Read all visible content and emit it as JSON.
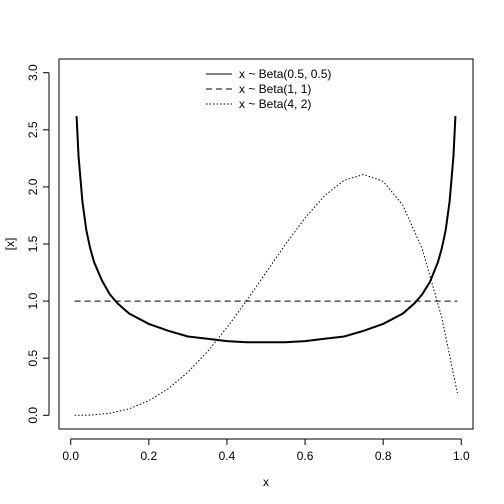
{
  "chart_data": {
    "type": "line",
    "title": "",
    "xlabel": "x",
    "ylabel": "[x]",
    "xlim": [
      -0.03,
      1.03
    ],
    "ylim": [
      -0.12,
      3.12
    ],
    "xticks": [
      0.0,
      0.2,
      0.4,
      0.6,
      0.8,
      1.0
    ],
    "xtick_labels": [
      "0.0",
      "0.2",
      "0.4",
      "0.6",
      "0.8",
      "1.0"
    ],
    "yticks": [
      0.0,
      0.5,
      1.0,
      1.5,
      2.0,
      2.5,
      3.0
    ],
    "ytick_labels": [
      "0.0",
      "0.5",
      "1.0",
      "1.5",
      "2.0",
      "2.5",
      "3.0"
    ],
    "grid": false,
    "legend_position": "top-center",
    "series": [
      {
        "name": "x ~ Beta(0.5, 0.5)",
        "style": "solid",
        "width": 2,
        "x": [
          0.015,
          0.02,
          0.03,
          0.04,
          0.05,
          0.06,
          0.08,
          0.1,
          0.12,
          0.15,
          0.2,
          0.25,
          0.3,
          0.35,
          0.4,
          0.45,
          0.5,
          0.55,
          0.6,
          0.65,
          0.7,
          0.75,
          0.8,
          0.85,
          0.88,
          0.9,
          0.92,
          0.94,
          0.95,
          0.96,
          0.97,
          0.98,
          0.985
        ],
        "y": [
          2.62,
          2.27,
          1.87,
          1.62,
          1.46,
          1.34,
          1.18,
          1.06,
          0.98,
          0.89,
          0.8,
          0.74,
          0.69,
          0.67,
          0.65,
          0.64,
          0.64,
          0.64,
          0.65,
          0.67,
          0.69,
          0.74,
          0.8,
          0.89,
          0.98,
          1.06,
          1.17,
          1.34,
          1.46,
          1.62,
          1.87,
          2.27,
          2.62
        ]
      },
      {
        "name": "x ~ Beta(1, 1)",
        "style": "dashed",
        "width": 1,
        "x": [
          0.01,
          0.99
        ],
        "y": [
          1.0,
          1.0
        ]
      },
      {
        "name": "x ~ Beta(4, 2)",
        "style": "dotted",
        "width": 1,
        "x": [
          0.01,
          0.05,
          0.1,
          0.15,
          0.2,
          0.25,
          0.3,
          0.35,
          0.4,
          0.45,
          0.5,
          0.55,
          0.6,
          0.65,
          0.7,
          0.75,
          0.8,
          0.85,
          0.9,
          0.95,
          0.99
        ],
        "y": [
          0.0,
          0.002,
          0.018,
          0.057,
          0.128,
          0.234,
          0.378,
          0.557,
          0.768,
          1.002,
          1.25,
          1.498,
          1.728,
          1.922,
          2.058,
          2.109,
          2.048,
          1.842,
          1.458,
          0.857,
          0.194
        ]
      }
    ]
  }
}
